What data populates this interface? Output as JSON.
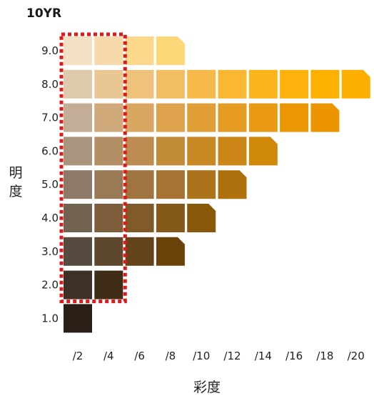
{
  "chart_data": {
    "type": "heatmap",
    "title": "10YR",
    "xlabel": "彩度",
    "ylabel": "明度",
    "x_ticks": [
      "/2",
      "/4",
      "/6",
      "/8",
      "/10",
      "/12",
      "/14",
      "/16",
      "/18",
      "/20"
    ],
    "y_ticks": [
      "9.0",
      "8.0",
      "7.0",
      "6.0",
      "5.0",
      "4.0",
      "3.0",
      "2.0",
      "1.0"
    ],
    "series": [
      {
        "value": "9.0",
        "colors": [
          "#f3e1c6",
          "#f6daab",
          "#fbd88b",
          "#fdd878"
        ],
        "max_chroma": "/8"
      },
      {
        "value": "8.0",
        "colors": [
          "#dfc9ad",
          "#e8c795",
          "#efc27c",
          "#f3bd63",
          "#f7b949",
          "#fab732",
          "#fcb41c",
          "#fdb10c",
          "#fdb000",
          "#fdaf00"
        ],
        "max_chroma": "/20"
      },
      {
        "value": "7.0",
        "colors": [
          "#c3ad96",
          "#cfa97a",
          "#d8a660",
          "#dea24d",
          "#e29f38",
          "#e69b23",
          "#e99912",
          "#eb9703",
          "#ec9500"
        ],
        "max_chroma": "/18"
      },
      {
        "value": "6.0",
        "colors": [
          "#a9957e",
          "#b38f66",
          "#bc8c52",
          "#c28b38",
          "#c88924",
          "#cc8617",
          "#d08808"
        ],
        "max_chroma": "/14"
      },
      {
        "value": "5.0",
        "colors": [
          "#8d7b67",
          "#987b56",
          "#9f7440",
          "#a57432",
          "#ab731c",
          "#ae710d"
        ],
        "max_chroma": "/12"
      },
      {
        "value": "4.0",
        "colors": [
          "#716252",
          "#7c5e3d",
          "#815a2b",
          "#855a18",
          "#875908"
        ],
        "max_chroma": "/10"
      },
      {
        "value": "3.0",
        "colors": [
          "#574a3f",
          "#5d472d",
          "#62431b",
          "#684208"
        ],
        "max_chroma": "/8"
      },
      {
        "value": "2.0",
        "colors": [
          "#3d3026",
          "#3f2c17"
        ],
        "max_chroma": "/4"
      },
      {
        "value": "1.0",
        "colors": [
          "#2a1f16"
        ],
        "max_chroma": "/2"
      }
    ],
    "highlight": {
      "chroma": [
        "/2",
        "/4"
      ],
      "value_range": [
        "2.0",
        "9.0"
      ],
      "style": "red dotted rectangle"
    },
    "colors": {
      "highlight": "#e01818"
    }
  }
}
